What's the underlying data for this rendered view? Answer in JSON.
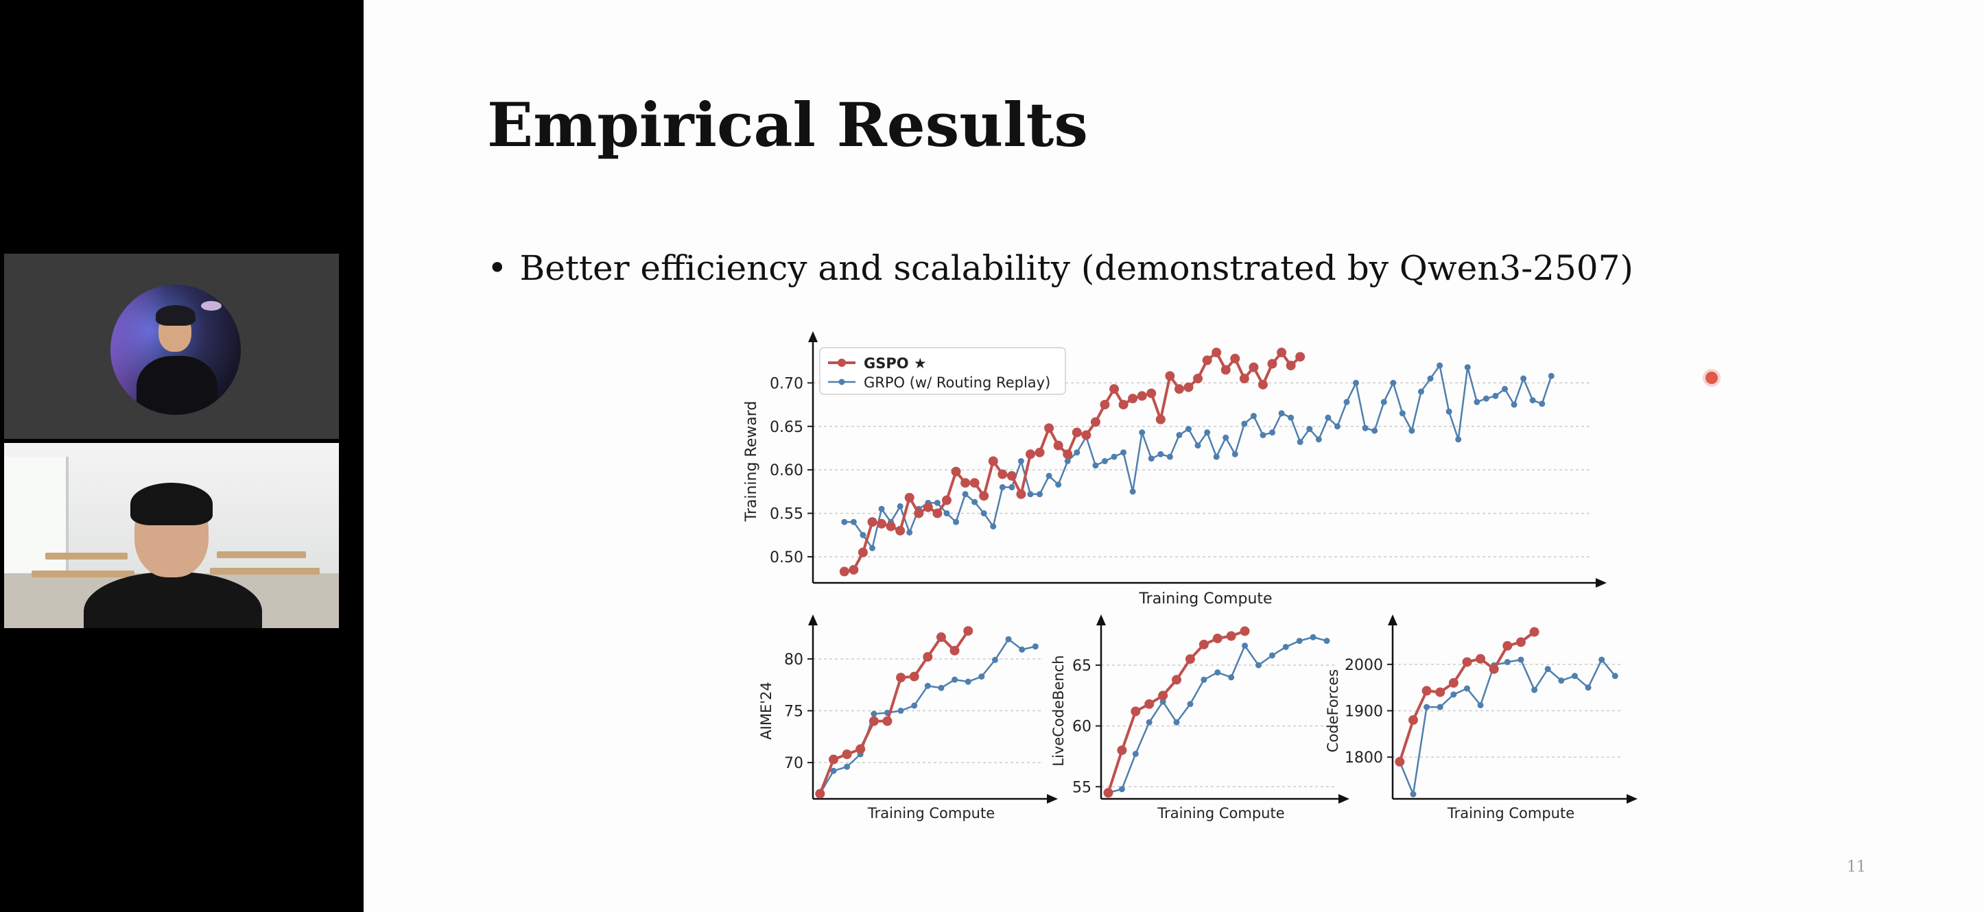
{
  "slide": {
    "title": "Empirical Results",
    "bullet": "Better efficiency and scalability (demonstrated by Qwen3-2507)",
    "page_number": "11"
  },
  "colors": {
    "gspo": "#c0504d",
    "grpo": "#4f7fae"
  },
  "chart_data": [
    {
      "id": "main",
      "type": "line",
      "xlabel": "Training Compute",
      "ylabel": "Training Reward",
      "ylim": [
        0.47,
        0.75
      ],
      "yticks": [
        0.5,
        0.55,
        0.6,
        0.65,
        0.7
      ],
      "ytick_labels": [
        "0.50",
        "0.55",
        "0.60",
        "0.65",
        "0.70"
      ],
      "grid": true,
      "legend": "top-left",
      "series": [
        {
          "name": "GSPO ★",
          "key": "gspo",
          "values": [
            0.483,
            0.485,
            0.505,
            0.54,
            0.538,
            0.535,
            0.53,
            0.568,
            0.55,
            0.557,
            0.55,
            0.565,
            0.598,
            0.585,
            0.585,
            0.57,
            0.61,
            0.595,
            0.593,
            0.572,
            0.618,
            0.62,
            0.648,
            0.628,
            0.618,
            0.643,
            0.64,
            0.655,
            0.675,
            0.693,
            0.675,
            0.682,
            0.685,
            0.688,
            0.658,
            0.708,
            0.693,
            0.695,
            0.705,
            0.726,
            0.735,
            0.715,
            0.728,
            0.705,
            0.718,
            0.698,
            0.722,
            0.735,
            0.72,
            0.73
          ]
        },
        {
          "name": "GRPO (w/ Routing Replay)",
          "key": "grpo",
          "values": [
            0.54,
            0.54,
            0.525,
            0.51,
            0.555,
            0.54,
            0.558,
            0.528,
            0.555,
            0.562,
            0.562,
            0.55,
            0.54,
            0.572,
            0.563,
            0.55,
            0.535,
            0.58,
            0.58,
            0.61,
            0.572,
            0.572,
            0.593,
            0.583,
            0.61,
            0.62,
            0.638,
            0.605,
            0.61,
            0.615,
            0.62,
            0.575,
            0.643,
            0.613,
            0.618,
            0.615,
            0.64,
            0.647,
            0.628,
            0.643,
            0.615,
            0.637,
            0.618,
            0.653,
            0.662,
            0.64,
            0.643,
            0.665,
            0.66,
            0.632,
            0.647,
            0.635,
            0.66,
            0.65,
            0.678,
            0.7,
            0.648,
            0.645,
            0.678,
            0.7,
            0.665,
            0.645,
            0.69,
            0.705,
            0.72,
            0.667,
            0.635,
            0.718,
            0.678,
            0.682,
            0.685,
            0.693,
            0.675,
            0.705,
            0.68,
            0.676,
            0.708
          ]
        }
      ]
    },
    {
      "id": "aime",
      "type": "line",
      "xlabel": "Training Compute",
      "ylabel": "AIME'24",
      "ylim": [
        66.5,
        83.5
      ],
      "yticks": [
        70,
        75,
        80
      ],
      "ytick_labels": [
        "70",
        "75",
        "80"
      ],
      "grid": true,
      "series": [
        {
          "key": "gspo",
          "values": [
            67,
            70.3,
            70.8,
            71.3,
            74,
            74,
            78.2,
            78.3,
            80.2,
            82.1,
            80.8,
            82.7
          ]
        },
        {
          "key": "grpo",
          "values": [
            67,
            69.2,
            69.6,
            70.8,
            74.7,
            74.8,
            75,
            75.5,
            77.4,
            77.2,
            78,
            77.8,
            78.3,
            79.9,
            81.9,
            80.9,
            81.2
          ]
        }
      ]
    },
    {
      "id": "livecode",
      "type": "line",
      "xlabel": "Training Compute",
      "ylabel": "LiveCodeBench",
      "ylim": [
        54,
        68.5
      ],
      "yticks": [
        55,
        60,
        65
      ],
      "ytick_labels": [
        "55",
        "60",
        "65"
      ],
      "grid": true,
      "series": [
        {
          "key": "gspo",
          "values": [
            54.5,
            58,
            61.2,
            61.8,
            62.5,
            63.8,
            65.5,
            66.7,
            67.2,
            67.4,
            67.8
          ]
        },
        {
          "key": "grpo",
          "values": [
            54.5,
            54.8,
            57.7,
            60.3,
            62,
            60.3,
            61.8,
            63.8,
            64.4,
            64,
            66.6,
            65,
            65.8,
            66.5,
            67,
            67.3,
            67
          ]
        }
      ]
    },
    {
      "id": "codeforces",
      "type": "line",
      "xlabel": "Training Compute",
      "ylabel": "CodeForces",
      "ylim": [
        1710,
        2090
      ],
      "yticks": [
        1800,
        1900,
        2000
      ],
      "ytick_labels": [
        "1800",
        "1900",
        "2000"
      ],
      "grid": true,
      "series": [
        {
          "key": "gspo",
          "values": [
            1790,
            1880,
            1943,
            1940,
            1960,
            2005,
            2012,
            1990,
            2040,
            2048,
            2070
          ]
        },
        {
          "key": "grpo",
          "values": [
            1790,
            1720,
            1908,
            1908,
            1935,
            1948,
            1912,
            1998,
            2005,
            2010,
            1945,
            1990,
            1965,
            1975,
            1950,
            2010,
            1975
          ]
        }
      ]
    }
  ]
}
